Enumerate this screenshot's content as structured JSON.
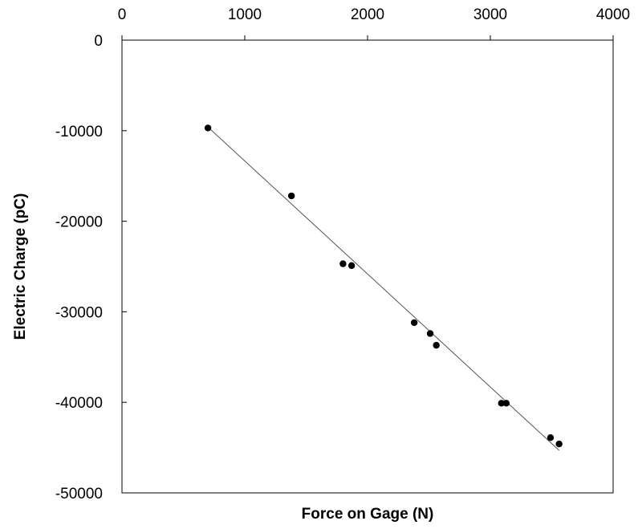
{
  "chart_data": {
    "type": "scatter",
    "title": "",
    "xlabel": "Force on Gage (N)",
    "ylabel": "Electric Charge (pC)",
    "xlim": [
      0,
      4000
    ],
    "ylim": [
      -50000,
      0
    ],
    "x_ticks": [
      0,
      1000,
      2000,
      3000,
      4000
    ],
    "y_ticks": [
      0,
      -10000,
      -20000,
      -30000,
      -40000,
      -50000
    ],
    "x_tick_labels": [
      "0",
      "1000",
      "2000",
      "3000",
      "4000"
    ],
    "y_tick_labels": [
      "0",
      "-10000",
      "-20000",
      "-30000",
      "-40000",
      "-50000"
    ],
    "x_axis_position": "top",
    "grid": false,
    "legend": "none",
    "series": [
      {
        "points": [
          {
            "x": 700,
            "y": -9700
          },
          {
            "x": 1380,
            "y": -17200
          },
          {
            "x": 1800,
            "y": -24700
          },
          {
            "x": 1870,
            "y": -24900
          },
          {
            "x": 2380,
            "y": -31200
          },
          {
            "x": 2510,
            "y": -32400
          },
          {
            "x": 2560,
            "y": -33700
          },
          {
            "x": 3090,
            "y": -40100
          },
          {
            "x": 3130,
            "y": -40100
          },
          {
            "x": 3490,
            "y": -43900
          },
          {
            "x": 3560,
            "y": -44600
          }
        ],
        "color": "#000000",
        "marker": "filled-circle"
      }
    ],
    "trendline": {
      "type": "linear",
      "x_start": 700,
      "x_end": 3560,
      "y_start": -9600,
      "y_end": -45300,
      "color": "#555555"
    }
  }
}
